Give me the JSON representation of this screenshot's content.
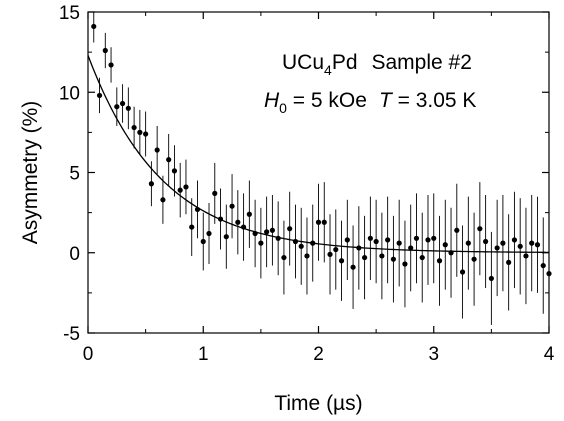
{
  "chart_data": {
    "type": "scatter",
    "title": "",
    "xlabel": "Time  (µs)",
    "ylabel": "Asymmetry  (%)",
    "xlim": [
      0,
      4
    ],
    "ylim": [
      -5,
      15
    ],
    "x_ticks": [
      0,
      1,
      2,
      3,
      4
    ],
    "y_ticks": [
      -5,
      0,
      5,
      10,
      15
    ],
    "x_tick_labels": [
      "0",
      "1",
      "2",
      "3",
      "4"
    ],
    "y_tick_labels": [
      "-5",
      "0",
      "5",
      "10",
      "15"
    ],
    "grid": false,
    "legend": "none",
    "annotations": {
      "line1": {
        "main": "UCu",
        "sub": "4",
        "tail": "Pd",
        "extra": "Sample #2"
      },
      "line2": {
        "h": "H",
        "hsub": "0",
        "h_value": " = 5 kOe",
        "t": "T",
        "t_value": " = 3.05 K"
      }
    },
    "fit_curve": {
      "type": "exponential",
      "amplitude": 12.3,
      "rate_per_us": 1.55,
      "baseline": 0.0
    },
    "series": [
      {
        "points": [
          [
            0.05,
            14.1,
            1.0
          ],
          [
            0.1,
            9.8,
            1.1
          ],
          [
            0.15,
            12.6,
            1.1
          ],
          [
            0.2,
            11.7,
            1.1
          ],
          [
            0.25,
            9.1,
            1.2
          ],
          [
            0.3,
            9.3,
            1.2
          ],
          [
            0.35,
            9.0,
            1.3
          ],
          [
            0.4,
            7.8,
            1.3
          ],
          [
            0.45,
            7.5,
            1.4
          ],
          [
            0.5,
            7.4,
            1.4
          ],
          [
            0.55,
            4.3,
            1.4
          ],
          [
            0.6,
            6.4,
            1.5
          ],
          [
            0.65,
            3.3,
            1.5
          ],
          [
            0.7,
            5.8,
            1.6
          ],
          [
            0.75,
            5.1,
            1.6
          ],
          [
            0.8,
            3.9,
            1.7
          ],
          [
            0.85,
            4.1,
            1.7
          ],
          [
            0.9,
            1.6,
            1.8
          ],
          [
            0.95,
            2.7,
            1.8
          ],
          [
            1.0,
            0.7,
            1.8
          ],
          [
            1.05,
            1.2,
            1.9
          ],
          [
            1.1,
            3.7,
            1.9
          ],
          [
            1.15,
            2.1,
            1.9
          ],
          [
            1.2,
            1.0,
            2.0
          ],
          [
            1.25,
            2.9,
            2.0
          ],
          [
            1.3,
            1.9,
            2.0
          ],
          [
            1.35,
            1.6,
            2.1
          ],
          [
            1.4,
            2.4,
            2.1
          ],
          [
            1.45,
            1.2,
            2.1
          ],
          [
            1.5,
            0.6,
            2.2
          ],
          [
            1.55,
            1.3,
            2.2
          ],
          [
            1.6,
            1.4,
            2.2
          ],
          [
            1.65,
            0.9,
            2.3
          ],
          [
            1.7,
            -0.3,
            2.3
          ],
          [
            1.75,
            1.5,
            2.3
          ],
          [
            1.8,
            0.7,
            2.3
          ],
          [
            1.85,
            0.4,
            2.4
          ],
          [
            1.9,
            -0.2,
            2.4
          ],
          [
            1.95,
            0.6,
            2.4
          ],
          [
            2.0,
            1.9,
            2.4
          ],
          [
            2.05,
            1.9,
            2.5
          ],
          [
            2.1,
            -0.1,
            2.5
          ],
          [
            2.15,
            0.2,
            2.5
          ],
          [
            2.2,
            -0.5,
            2.5
          ],
          [
            2.25,
            0.8,
            2.5
          ],
          [
            2.3,
            -0.9,
            2.6
          ],
          [
            2.35,
            0.3,
            2.6
          ],
          [
            2.4,
            -0.3,
            2.6
          ],
          [
            2.45,
            0.9,
            2.6
          ],
          [
            2.5,
            0.7,
            2.6
          ],
          [
            2.55,
            -0.2,
            2.7
          ],
          [
            2.6,
            0.8,
            2.7
          ],
          [
            2.65,
            -0.4,
            2.7
          ],
          [
            2.7,
            0.6,
            2.7
          ],
          [
            2.75,
            -0.7,
            2.7
          ],
          [
            2.8,
            0.3,
            2.7
          ],
          [
            2.85,
            0.9,
            2.8
          ],
          [
            2.9,
            -0.3,
            2.8
          ],
          [
            2.95,
            0.8,
            2.8
          ],
          [
            3.0,
            0.9,
            2.8
          ],
          [
            3.05,
            -0.5,
            2.8
          ],
          [
            3.1,
            0.5,
            2.8
          ],
          [
            3.15,
            0.0,
            2.8
          ],
          [
            3.2,
            1.4,
            2.9
          ],
          [
            3.25,
            -1.2,
            2.9
          ],
          [
            3.3,
            0.6,
            2.9
          ],
          [
            3.35,
            -0.4,
            2.9
          ],
          [
            3.4,
            1.5,
            2.9
          ],
          [
            3.45,
            0.7,
            2.9
          ],
          [
            3.5,
            -1.6,
            2.9
          ],
          [
            3.55,
            0.3,
            3.0
          ],
          [
            3.6,
            0.6,
            3.0
          ],
          [
            3.65,
            -0.6,
            3.0
          ],
          [
            3.7,
            0.8,
            3.0
          ],
          [
            3.75,
            0.4,
            3.0
          ],
          [
            3.8,
            -0.2,
            3.0
          ],
          [
            3.85,
            0.6,
            3.0
          ],
          [
            3.9,
            0.5,
            3.0
          ],
          [
            3.95,
            -0.8,
            3.0
          ],
          [
            4.0,
            -1.3,
            3.0
          ]
        ]
      }
    ]
  }
}
